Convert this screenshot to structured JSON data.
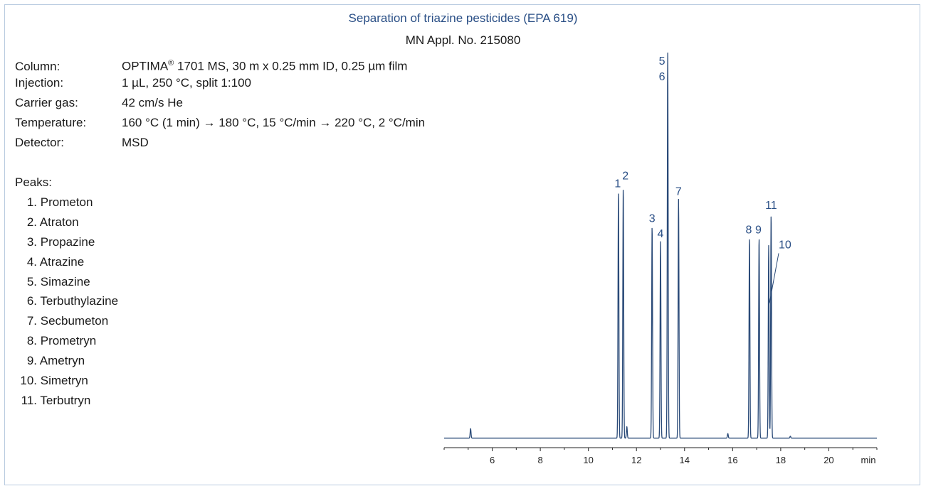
{
  "title": "Separation of triazine pesticides (EPA 619)",
  "subtitle": "MN Appl. No. 215080",
  "conditions": [
    {
      "label": "Column:",
      "value": "OPTIMA® 1701 MS, 30 m x 0.25 mm ID, 0.25 µm film"
    },
    {
      "label": "Injection:",
      "value": "1 µL, 250 °C, split 1:100"
    },
    {
      "label": "Carrier gas:",
      "value": "42 cm/s He"
    },
    {
      "label": "Temperature:",
      "value": "160 °C (1 min) → 180 °C, 15 °C/min → 220 °C, 2 °C/min"
    },
    {
      "label": "Detector:",
      "value": "MSD"
    }
  ],
  "peaks_title": "Peaks:",
  "peaks": [
    {
      "num": "1.",
      "name": "Prometon"
    },
    {
      "num": "2.",
      "name": "Atraton"
    },
    {
      "num": "3.",
      "name": "Propazine"
    },
    {
      "num": "4.",
      "name": "Atrazine"
    },
    {
      "num": "5.",
      "name": "Simazine"
    },
    {
      "num": "6.",
      "name": "Terbuthylazine"
    },
    {
      "num": "7.",
      "name": "Secbumeton"
    },
    {
      "num": "8.",
      "name": "Prometryn"
    },
    {
      "num": "9.",
      "name": "Ametryn"
    },
    {
      "num": "10.",
      "name": "Simetryn"
    },
    {
      "num": "11.",
      "name": "Terbutryn"
    }
  ],
  "colors": {
    "line": "#2a4a78",
    "accent": "#2a4f86",
    "border": "#b9cbe0"
  },
  "chart_data": {
    "type": "line",
    "xlabel": "min",
    "ylabel": "",
    "xlim": [
      4.0,
      22.0
    ],
    "ylim": [
      0,
      100
    ],
    "x_ticks": [
      6,
      8,
      10,
      12,
      14,
      16,
      18,
      20
    ],
    "grid": false,
    "baseline": 1.0,
    "peaks": [
      {
        "labels": [
          "1"
        ],
        "x": 11.25,
        "height": 64
      },
      {
        "labels": [
          "2"
        ],
        "x": 11.45,
        "height": 65
      },
      {
        "labels": [
          "3"
        ],
        "x": 12.65,
        "height": 55
      },
      {
        "labels": [
          "4"
        ],
        "x": 13.0,
        "height": 51
      },
      {
        "labels": [
          "5",
          "6"
        ],
        "x": 13.3,
        "height": 100
      },
      {
        "labels": [
          "7"
        ],
        "x": 13.75,
        "height": 62
      },
      {
        "labels": [
          "8"
        ],
        "x": 16.7,
        "height": 52
      },
      {
        "labels": [
          "9"
        ],
        "x": 17.1,
        "height": 52
      },
      {
        "labels": [
          "11"
        ],
        "x": 17.6,
        "height": 58
      },
      {
        "labels": [
          "10"
        ],
        "x": 17.5,
        "height": 50
      }
    ],
    "minor_peaks": [
      {
        "x": 5.1,
        "height": 2.5
      },
      {
        "x": 11.6,
        "height": 3
      },
      {
        "x": 15.8,
        "height": 1.2
      },
      {
        "x": 18.4,
        "height": 0.5
      }
    ]
  }
}
